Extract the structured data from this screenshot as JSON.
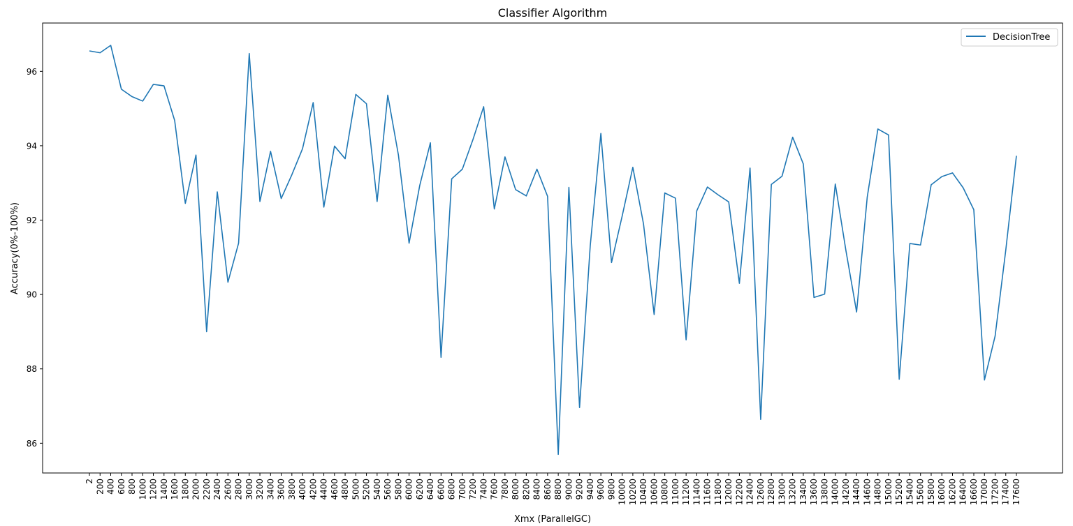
{
  "chart_data": {
    "type": "line",
    "title": "Classifier Algorithm",
    "xlabel": "Xmx (ParallelGC)",
    "ylabel": "Accuracy(0%-100%)",
    "ylim": [
      85.2,
      97.3
    ],
    "yticks": [
      86,
      88,
      90,
      92,
      94,
      96
    ],
    "grid": false,
    "legend_position": "top-right",
    "x": [
      "2",
      "200",
      "400",
      "600",
      "800",
      "1000",
      "1200",
      "1400",
      "1600",
      "1800",
      "2000",
      "2200",
      "2400",
      "2600",
      "2800",
      "3000",
      "3200",
      "3400",
      "3600",
      "3800",
      "4000",
      "4200",
      "4400",
      "4600",
      "4800",
      "5000",
      "5200",
      "5400",
      "5600",
      "5800",
      "6000",
      "6200",
      "6400",
      "6600",
      "6800",
      "7000",
      "7200",
      "7400",
      "7600",
      "7800",
      "8000",
      "8200",
      "8400",
      "8600",
      "8800",
      "9000",
      "9200",
      "9400",
      "9600",
      "9800",
      "10000",
      "10200",
      "10400",
      "10600",
      "10800",
      "11000",
      "11200",
      "11400",
      "11600",
      "11800",
      "12000",
      "12200",
      "12400",
      "12600",
      "12800",
      "13000",
      "13200",
      "13400",
      "13600",
      "13800",
      "14000",
      "14200",
      "14400",
      "14600",
      "14800",
      "15000",
      "15200",
      "15400",
      "15600",
      "15800",
      "16000",
      "16200",
      "16400",
      "16600",
      "17000",
      "17200",
      "17400",
      "17600"
    ],
    "series": [
      {
        "name": "DecisionTree",
        "color": "#1f77b4",
        "values": [
          96.55,
          96.5,
          96.7,
          95.52,
          95.32,
          95.2,
          95.65,
          95.61,
          94.68,
          92.45,
          93.75,
          89.0,
          92.76,
          90.33,
          91.38,
          96.48,
          92.5,
          93.85,
          92.58,
          93.22,
          93.92,
          95.16,
          92.35,
          93.99,
          93.65,
          95.38,
          95.13,
          92.5,
          95.36,
          93.75,
          91.38,
          92.93,
          94.08,
          88.31,
          93.11,
          93.37,
          94.17,
          95.05,
          92.3,
          93.7,
          92.82,
          92.65,
          93.37,
          92.64,
          85.7,
          92.88,
          86.96,
          91.3,
          94.33,
          90.86,
          92.11,
          93.42,
          91.9,
          89.46,
          92.73,
          92.59,
          88.78,
          92.25,
          92.89,
          92.68,
          92.49,
          90.3,
          93.4,
          86.64,
          92.96,
          93.18,
          94.23,
          93.51,
          89.92,
          90.01,
          92.97,
          91.18,
          89.53,
          92.62,
          94.45,
          94.29,
          87.72,
          91.37,
          91.33,
          92.95,
          93.17,
          93.27,
          92.87,
          92.28,
          87.7,
          88.88,
          91.19,
          93.73
        ]
      }
    ]
  }
}
